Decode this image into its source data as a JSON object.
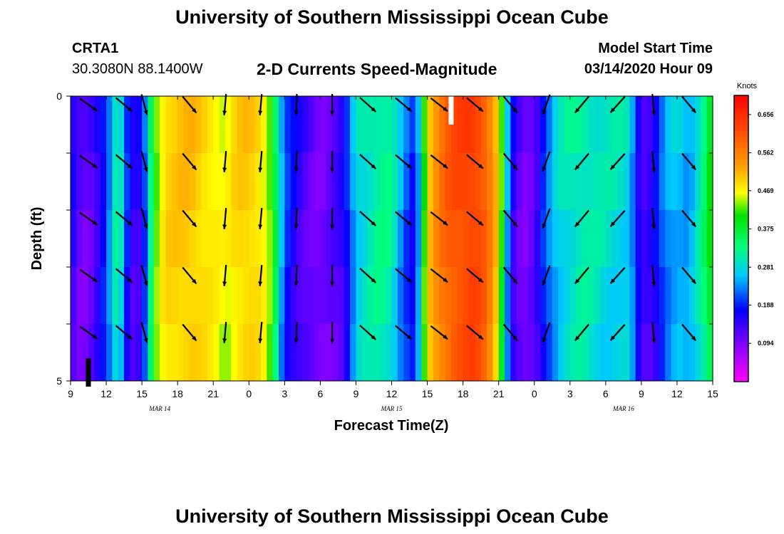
{
  "header": {
    "title": "University of Southern Mississippi Ocean Cube",
    "station_id": "CRTA1",
    "station_coords": "30.3080N 88.1400W",
    "plot_title": "2-D Currents Speed-Magnitude",
    "model_label": "Model Start Time",
    "model_time": "03/14/2020 Hour 09"
  },
  "footer": {
    "title": "University of Southern Mississippi Ocean Cube"
  },
  "chart_data": {
    "type": "heatmap",
    "title": "2-D Currents Speed-Magnitude",
    "xlabel": "Forecast Time(Z)",
    "ylabel": "Depth (ft)",
    "x_ticks": [
      "9",
      "12",
      "15",
      "18",
      "21",
      "0",
      "3",
      "6",
      "9",
      "12",
      "15",
      "18",
      "21",
      "0",
      "3",
      "6",
      "9",
      "12",
      "15"
    ],
    "x_hours_range": [
      0,
      54
    ],
    "date_labels": [
      {
        "label": "MAR 14",
        "hour": 7.5
      },
      {
        "label": "MAR 15",
        "hour": 27
      },
      {
        "label": "MAR 16",
        "hour": 46.5
      }
    ],
    "y_ticks": [
      "0",
      "5"
    ],
    "ylim": [
      0,
      5
    ],
    "depth_layers": 5,
    "colorbar": {
      "title": "Knots",
      "range": [
        0.0,
        0.703
      ],
      "ticks": [
        "0.656",
        "0.562",
        "0.469",
        "0.375",
        "0.281",
        "0.188",
        "0.094"
      ],
      "tick_values": [
        0.656,
        0.562,
        0.469,
        0.375,
        0.281,
        0.188,
        0.094
      ]
    },
    "speed_profile_knots": [
      [
        0,
        0.16
      ],
      [
        1,
        0.1
      ],
      [
        2,
        0.13
      ],
      [
        3,
        0.2
      ],
      [
        4,
        0.32
      ],
      [
        5,
        0.14
      ],
      [
        6,
        0.15
      ],
      [
        7,
        0.38
      ],
      [
        8,
        0.46
      ],
      [
        9,
        0.47
      ],
      [
        10,
        0.48
      ],
      [
        11,
        0.46
      ],
      [
        12,
        0.44
      ],
      [
        13,
        0.42
      ],
      [
        14,
        0.46
      ],
      [
        15,
        0.47
      ],
      [
        16,
        0.45
      ],
      [
        17,
        0.38
      ],
      [
        18,
        0.2
      ],
      [
        19,
        0.15
      ],
      [
        20,
        0.12
      ],
      [
        21,
        0.1
      ],
      [
        22,
        0.12
      ],
      [
        23,
        0.15
      ],
      [
        24,
        0.27
      ],
      [
        25,
        0.29
      ],
      [
        26,
        0.31
      ],
      [
        27,
        0.3
      ],
      [
        28,
        0.22
      ],
      [
        29,
        0.17
      ],
      [
        30,
        0.46
      ],
      [
        31,
        0.55
      ],
      [
        32,
        0.6
      ],
      [
        33,
        0.62
      ],
      [
        34,
        0.63
      ],
      [
        35,
        0.58
      ],
      [
        36,
        0.45
      ],
      [
        37,
        0.17
      ],
      [
        38,
        0.1
      ],
      [
        39,
        0.12
      ],
      [
        40,
        0.21
      ],
      [
        41,
        0.27
      ],
      [
        42,
        0.29
      ],
      [
        43,
        0.3
      ],
      [
        44,
        0.29
      ],
      [
        45,
        0.28
      ],
      [
        46,
        0.28
      ],
      [
        47,
        0.27
      ],
      [
        48,
        0.13
      ],
      [
        49,
        0.15
      ],
      [
        50,
        0.23
      ],
      [
        51,
        0.26
      ],
      [
        52,
        0.24
      ],
      [
        53,
        0.3
      ],
      [
        54,
        0.38
      ]
    ],
    "current_vectors": [
      {
        "hour": 1.5,
        "dir_deg": 125
      },
      {
        "hour": 4.5,
        "dir_deg": 130
      },
      {
        "hour": 6.2,
        "dir_deg": 165
      },
      {
        "hour": 10,
        "dir_deg": 140
      },
      {
        "hour": 13,
        "dir_deg": 185
      },
      {
        "hour": 16,
        "dir_deg": 185
      },
      {
        "hour": 19,
        "dir_deg": 182
      },
      {
        "hour": 22,
        "dir_deg": 180
      },
      {
        "hour": 25,
        "dir_deg": 132
      },
      {
        "hour": 28,
        "dir_deg": 130
      },
      {
        "hour": 31,
        "dir_deg": 128
      },
      {
        "hour": 34,
        "dir_deg": 130
      },
      {
        "hour": 37,
        "dir_deg": 140
      },
      {
        "hour": 40,
        "dir_deg": 200
      },
      {
        "hour": 43,
        "dir_deg": 220
      },
      {
        "hour": 46,
        "dir_deg": 222
      },
      {
        "hour": 49,
        "dir_deg": 175
      },
      {
        "hour": 52,
        "dir_deg": 140
      }
    ],
    "annotations": [
      {
        "hour": 1.5,
        "depth": 4.85,
        "color": "#000000"
      },
      {
        "hour": 32,
        "depth": 0.25,
        "color": "#ffffff"
      }
    ]
  }
}
